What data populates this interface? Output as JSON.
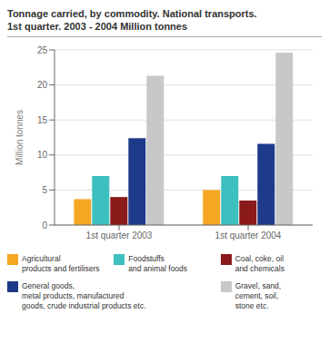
{
  "chart_data": {
    "type": "bar",
    "title": "Tonnage carried, by commodity. National transports.\n1st quarter. 2003 - 2004 Million tonnes",
    "y_label": "Million tonnes",
    "categories": [
      "1st quarter 2003",
      "1st quarter 2004"
    ],
    "series": [
      {
        "name": "Agricultural\nproducts and fertilisers",
        "color": "#f5a623",
        "values": [
          3.7,
          5.0
        ]
      },
      {
        "name": "Foodstuffs\nand animal foods",
        "color": "#3dbfbf",
        "values": [
          7.0,
          7.0
        ]
      },
      {
        "name": "Coal, coke, oil\nand chemicals",
        "color": "#8b1a1a",
        "values": [
          4.0,
          3.5
        ]
      },
      {
        "name": "General goods,\nmetal products, manufactured\ngoods, crude industrial products etc.",
        "color": "#1e3a8a",
        "values": [
          12.4,
          11.6
        ]
      },
      {
        "name": "Gravel, sand,\ncement, soil,\nstone etc.",
        "color": "#c8c8c8",
        "values": [
          21.3,
          24.6
        ]
      }
    ],
    "ylim": [
      0,
      25
    ],
    "yticks": [
      0,
      5,
      10,
      15,
      20,
      25
    ],
    "grid": true,
    "legend": "bottom"
  }
}
